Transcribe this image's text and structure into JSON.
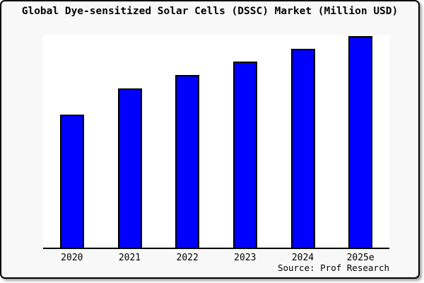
{
  "chart_data": {
    "type": "bar",
    "title": "Global Dye-sensitized Solar Cells (DSSC) Market (Million USD)",
    "categories": [
      "2020",
      "2021",
      "2022",
      "2023",
      "2024",
      "2025e"
    ],
    "values": [
      62.9,
      75.4,
      81.6,
      88.0,
      94.0,
      100
    ],
    "values_note": "No y-axis tick labels are shown in the chart; values are relative bar heights normalized so the 2025e bar = 100.",
    "xlabel": "",
    "ylabel": "",
    "y_axis_visible": false,
    "gridlines": false,
    "legend_position": "none",
    "bar_color": "#0000ff",
    "bar_border_color": "#000000",
    "axis_color": "#000000",
    "background_color": "#f8f8f8",
    "plot_background_color": "#ffffff",
    "text_color": "#000000"
  },
  "source_note": "Source: Prof Research"
}
